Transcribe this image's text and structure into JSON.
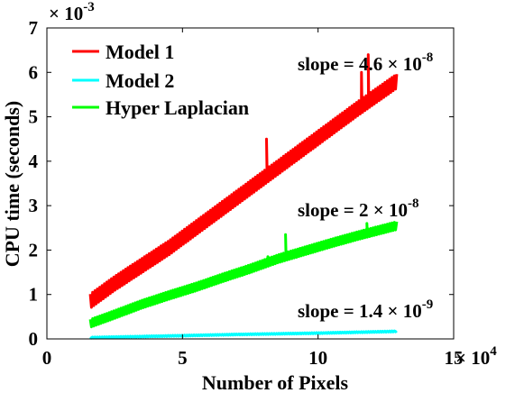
{
  "chart_data": {
    "type": "line",
    "title": "",
    "xlabel": "Number of Pixels",
    "ylabel": "CPU time (seconds)",
    "x_multiplier": "× 10^4",
    "y_multiplier": "× 10^-3",
    "xlim": [
      0,
      15
    ],
    "ylim": [
      0,
      7
    ],
    "x_ticks": [
      "0",
      "5",
      "10",
      "15"
    ],
    "y_ticks": [
      "0",
      "1",
      "2",
      "3",
      "4",
      "5",
      "6",
      "7"
    ],
    "grid": false,
    "legend_position": "top-left",
    "series": [
      {
        "name": "Model 1",
        "color": "#ff0000",
        "x": [
          1.6,
          2.5,
          3.5,
          4.5,
          5.5,
          6.5,
          7.5,
          8.5,
          9.5,
          10.5,
          11.5,
          12.9
        ],
        "y": [
          0.85,
          1.25,
          1.65,
          2.05,
          2.5,
          2.95,
          3.4,
          3.85,
          4.3,
          4.75,
          5.2,
          5.8
        ],
        "spikes": [
          {
            "x": 8.1,
            "y": 4.5
          },
          {
            "x": 11.6,
            "y": 6.0
          },
          {
            "x": 11.85,
            "y": 6.4
          }
        ]
      },
      {
        "name": "Model 2",
        "color": "#00ffff",
        "x": [
          1.6,
          4.0,
          7.0,
          10.0,
          12.9
        ],
        "y": [
          0.03,
          0.06,
          0.1,
          0.13,
          0.17
        ],
        "spikes": []
      },
      {
        "name": "Hyper Laplacian",
        "color": "#00ff00",
        "x": [
          1.6,
          2.5,
          3.5,
          4.5,
          5.5,
          6.5,
          7.5,
          8.5,
          9.5,
          10.5,
          11.5,
          12.9
        ],
        "y": [
          0.35,
          0.55,
          0.78,
          0.98,
          1.17,
          1.38,
          1.58,
          1.8,
          1.98,
          2.16,
          2.33,
          2.55
        ],
        "spikes": [
          {
            "x": 8.15,
            "y": 1.85
          },
          {
            "x": 8.8,
            "y": 2.35
          },
          {
            "x": 11.8,
            "y": 2.6
          }
        ]
      }
    ],
    "annotations": [
      {
        "mantissa": "slope = 4.6 × 10",
        "exponent": "-8"
      },
      {
        "mantissa": "slope = 2 × 10",
        "exponent": "-8"
      },
      {
        "mantissa": "slope = 1.4 × 10",
        "exponent": "-9"
      }
    ]
  }
}
